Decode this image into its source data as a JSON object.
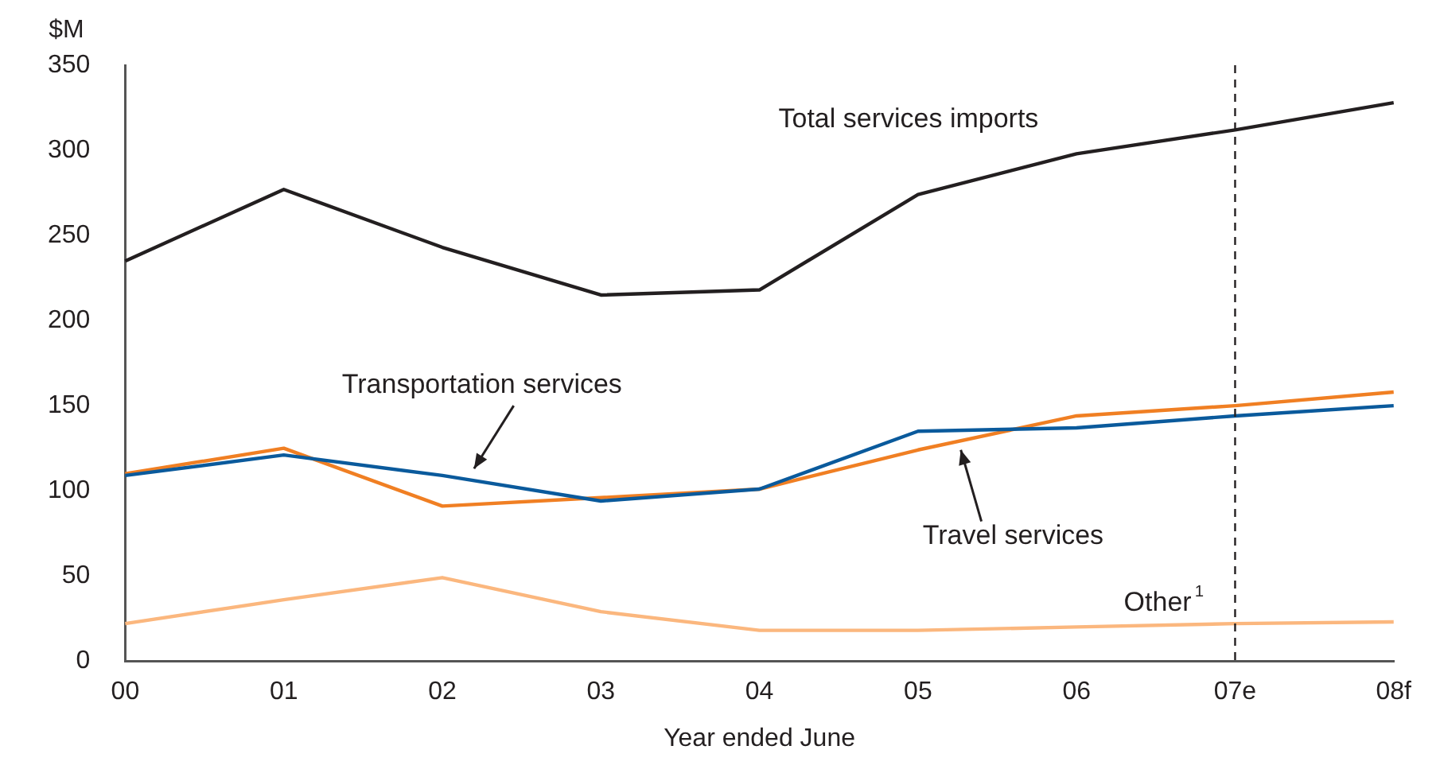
{
  "chart_data": {
    "type": "line",
    "xlabel": "Year ended June",
    "ylabel": "$M",
    "categories": [
      "00",
      "01",
      "02",
      "03",
      "04",
      "05",
      "06",
      "07e",
      "08f"
    ],
    "series": [
      {
        "name": "Total services imports",
        "color": "#231f20",
        "values": [
          235,
          277,
          243,
          215,
          218,
          274,
          298,
          312,
          328
        ]
      },
      {
        "name": "Transportation services",
        "color": "#0a5a9c",
        "values": [
          109,
          121,
          109,
          94,
          101,
          135,
          137,
          144,
          150
        ]
      },
      {
        "name": "Travel services",
        "color": "#f07f23",
        "values": [
          110,
          125,
          91,
          96,
          101,
          124,
          144,
          150,
          158
        ]
      },
      {
        "name": "Other$^{1}$",
        "color": "#fbb77e",
        "values": [
          22,
          36,
          49,
          29,
          18,
          18,
          20,
          22,
          23
        ]
      }
    ],
    "ylim": [
      0,
      350
    ],
    "yticks": [
      0,
      50,
      100,
      150,
      200,
      250,
      300,
      350
    ],
    "ref_lines": [
      {
        "axis": "x",
        "value": "07e",
        "line_style": "dashed",
        "color": "#231f20"
      }
    ],
    "grid": false,
    "legend": false,
    "marker": "none",
    "line_style": "solid"
  }
}
